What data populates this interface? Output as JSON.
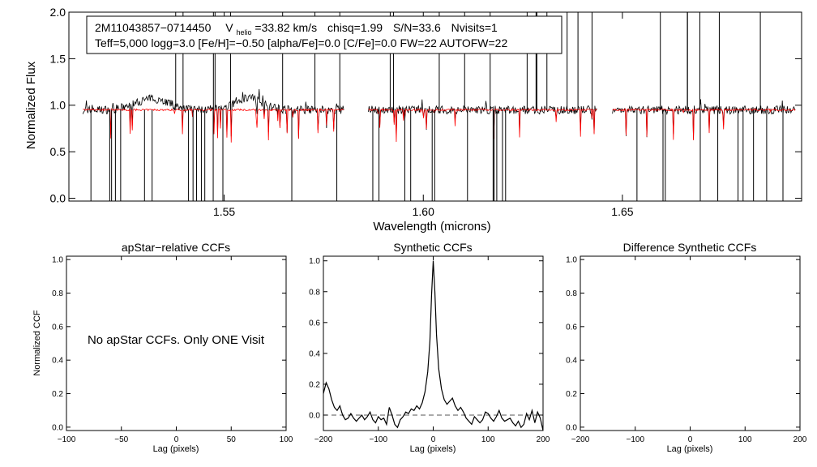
{
  "chart_data": [
    {
      "type": "line",
      "panel": "spectrum",
      "title": "",
      "xlabel": "Wavelength (microns)",
      "ylabel": "Normalized Flux",
      "xlim": [
        1.511,
        1.695
      ],
      "ylim": [
        -0.03,
        2.0
      ],
      "xticks": [
        1.55,
        1.6,
        1.65
      ],
      "xtick_labels": [
        "1.55",
        "1.60",
        "1.65"
      ],
      "yticks": [
        0.0,
        0.5,
        1.0,
        1.5,
        2.0
      ],
      "ytick_labels": [
        "0.0",
        "0.5",
        "1.0",
        "1.5",
        "2.0"
      ],
      "annotation": {
        "star": "2M11043857−0714450",
        "v_prefix": "V",
        "v_sub": "helio",
        "v_value": "=33.82 km/s",
        "chisq": "chisq=1.99",
        "sn": "S/N=33.6",
        "nvisits": "Nvisits=1",
        "line2": "Teff=5,000 logg=3.0 [Fe/H]=−0.50 [alpha/Fe]=0.0 [C/Fe]=0.0 FW=22 AUTOFW=22"
      },
      "chips": [
        [
          1.5145,
          1.5802
        ],
        [
          1.5862,
          1.6438
        ],
        [
          1.6475,
          1.6935
        ]
      ],
      "series": [
        {
          "name": "observed",
          "color": "#000000",
          "base_flux": 0.95,
          "bumps": [
            {
              "center": 1.532,
              "width": 0.006,
              "amp": 0.12
            },
            {
              "center": 1.556,
              "width": 0.005,
              "amp": 0.13
            }
          ]
        },
        {
          "name": "synthetic",
          "color": "#ff0000",
          "base_flux": 0.95
        }
      ]
    },
    {
      "type": "line",
      "panel": "ccf-apstar",
      "title": "apStar−relative CCFs",
      "xlabel": "Lag (pixels)",
      "ylabel": "Normalized CCF",
      "xlim": [
        -100,
        100
      ],
      "ylim": [
        -0.02,
        1.02
      ],
      "xticks": [
        -100,
        -50,
        0,
        50,
        100
      ],
      "xtick_labels": [
        "−100",
        "−50",
        "0",
        "50",
        "100"
      ],
      "yticks": [
        0.0,
        0.2,
        0.4,
        0.6,
        0.8,
        1.0
      ],
      "ytick_labels": [
        "0.0",
        "0.2",
        "0.4",
        "0.6",
        "0.8",
        "1.0"
      ],
      "message": "No apStar CCFs.  Only ONE Visit",
      "series": []
    },
    {
      "type": "line",
      "panel": "ccf-synthetic",
      "title": "Synthetic CCFs",
      "xlabel": "Lag (pixels)",
      "ylabel": "",
      "xlim": [
        -200,
        200
      ],
      "ylim": [
        -0.1,
        1.03
      ],
      "xticks": [
        -200,
        -100,
        0,
        100,
        200
      ],
      "xtick_labels": [
        "−200",
        "−100",
        "0",
        "100",
        "200"
      ],
      "yticks": [
        0.0,
        0.2,
        0.4,
        0.6,
        0.8,
        1.0
      ],
      "ytick_labels": [
        "0.0",
        "0.2",
        "0.4",
        "0.6",
        "0.8",
        "1.0"
      ],
      "zero_line": 0.0,
      "series": [
        {
          "name": "synthetic-ccf",
          "color": "#000000",
          "x": [
            -200,
            -195,
            -190,
            -185,
            -180,
            -175,
            -170,
            -165,
            -160,
            -155,
            -150,
            -145,
            -140,
            -135,
            -130,
            -125,
            -120,
            -115,
            -110,
            -105,
            -100,
            -95,
            -90,
            -85,
            -80,
            -75,
            -70,
            -65,
            -60,
            -55,
            -50,
            -45,
            -40,
            -35,
            -30,
            -25,
            -20,
            -15,
            -10,
            -6,
            -3,
            0,
            3,
            6,
            10,
            15,
            20,
            25,
            30,
            35,
            40,
            45,
            50,
            55,
            60,
            65,
            70,
            75,
            80,
            85,
            90,
            95,
            100,
            105,
            110,
            115,
            120,
            125,
            130,
            135,
            140,
            145,
            150,
            155,
            160,
            165,
            170,
            175,
            180,
            185,
            190,
            195,
            200
          ],
          "y": [
            0.14,
            0.21,
            0.17,
            0.1,
            0.05,
            0.03,
            0.06,
            0.0,
            -0.03,
            -0.02,
            0.01,
            -0.02,
            -0.04,
            -0.02,
            0.0,
            -0.03,
            -0.01,
            0.02,
            -0.03,
            -0.05,
            -0.01,
            -0.03,
            -0.02,
            -0.06,
            0.05,
            0.0,
            -0.06,
            -0.08,
            -0.03,
            -0.01,
            0.02,
            0.01,
            0.04,
            0.03,
            0.06,
            0.04,
            0.08,
            0.15,
            0.28,
            0.48,
            0.78,
            1.0,
            0.8,
            0.52,
            0.3,
            0.17,
            0.1,
            0.07,
            0.09,
            0.11,
            0.06,
            0.03,
            0.05,
            0.02,
            -0.02,
            -0.04,
            -0.06,
            -0.01,
            -0.03,
            -0.05,
            -0.03,
            0.02,
            0.01,
            -0.02,
            -0.04,
            -0.01,
            0.03,
            -0.02,
            -0.04,
            -0.03,
            -0.02,
            -0.05,
            -0.07,
            -0.04,
            -0.08,
            -0.06,
            0.01,
            -0.03,
            0.03,
            -0.05,
            0.02,
            -0.02,
            -0.1
          ]
        }
      ]
    },
    {
      "type": "line",
      "panel": "ccf-difference",
      "title": "Difference Synthetic CCFs",
      "xlabel": "Lag (pixels)",
      "ylabel": "",
      "xlim": [
        -200,
        200
      ],
      "ylim": [
        -0.02,
        1.02
      ],
      "xticks": [
        -200,
        -100,
        0,
        100,
        200
      ],
      "xtick_labels": [
        "−200",
        "−100",
        "0",
        "100",
        "200"
      ],
      "yticks": [
        0.0,
        0.2,
        0.4,
        0.6,
        0.8,
        1.0
      ],
      "ytick_labels": [
        "0.0",
        "0.2",
        "0.4",
        "0.6",
        "0.8",
        "1.0"
      ],
      "series": []
    }
  ]
}
